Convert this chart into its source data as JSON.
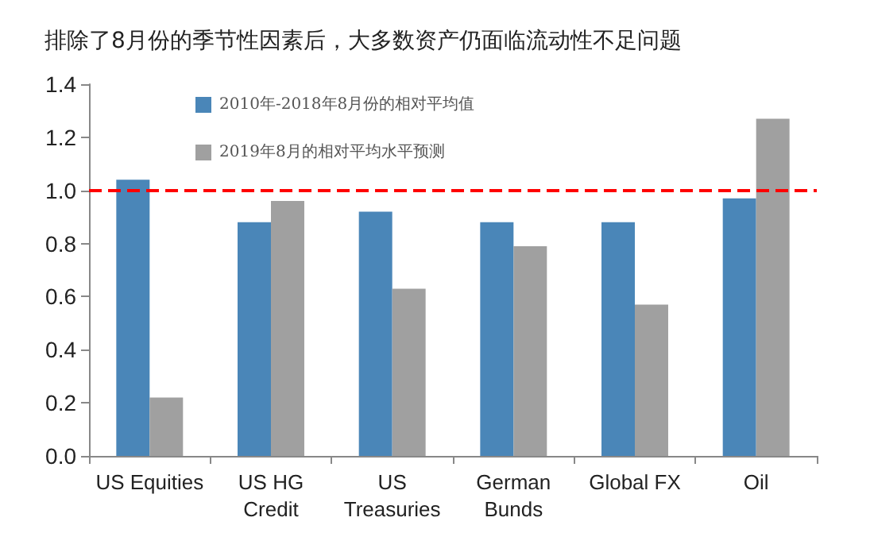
{
  "chart_data": {
    "type": "bar",
    "title": "排除了8月份的季节性因素后，大多数资产仍面临流动性不足问题",
    "categories": [
      "US Equities",
      "US HG\nCredit",
      "US\nTreasuries",
      "German\nBunds",
      "Global FX",
      "Oil"
    ],
    "series": [
      {
        "name": "2010年-2018年8月份的相对平均值",
        "color": "#4a86b8",
        "values": [
          1.04,
          0.88,
          0.92,
          0.88,
          0.88,
          0.97
        ]
      },
      {
        "name": "2019年8月的相对平均水平预测",
        "color": "#a0a0a0",
        "values": [
          0.22,
          0.96,
          0.63,
          0.79,
          0.57,
          1.27
        ]
      }
    ],
    "ylim": [
      0,
      1.4
    ],
    "yticks": [
      {
        "value": 0,
        "label": "0.0"
      },
      0.2,
      0.4,
      0.6,
      0.8,
      {
        "value": 1,
        "label": "1.0"
      },
      1.2,
      1.4
    ],
    "ref_lines": [
      {
        "axis": "y",
        "value": 1.0,
        "color": "#ff0000",
        "line_style": "dashed"
      }
    ],
    "grid": false,
    "legend": "top"
  }
}
